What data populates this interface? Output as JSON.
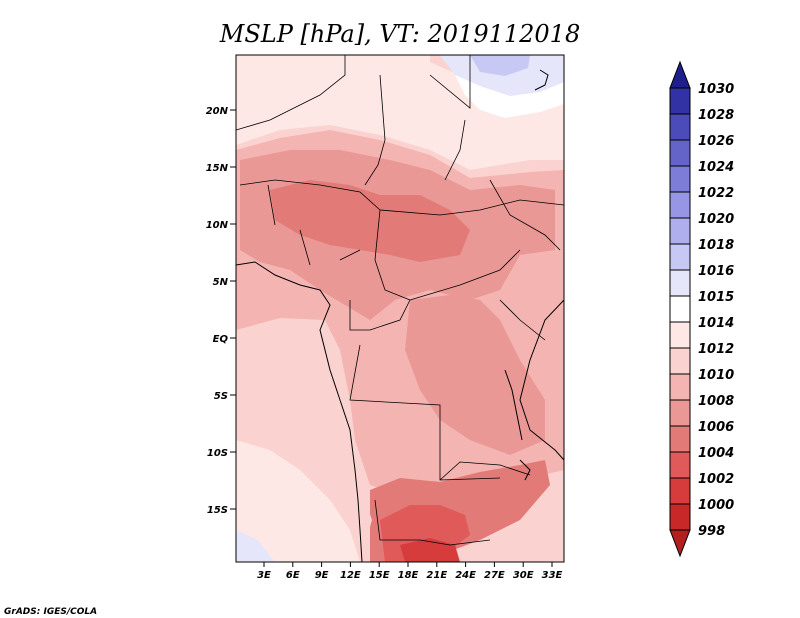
{
  "chart_data": {
    "type": "heatmap",
    "title": "MSLP [hPa], VT: 2019112018",
    "credit": "GrADS: IGES/COLA",
    "x_ticks": [
      "3E",
      "6E",
      "9E",
      "12E",
      "15E",
      "18E",
      "21E",
      "24E",
      "27E",
      "30E",
      "33E"
    ],
    "y_ticks": [
      "20N",
      "15N",
      "10N",
      "5N",
      "EQ",
      "5S",
      "10S",
      "15S"
    ],
    "colorbar": {
      "levels": [
        "998",
        "1000",
        "1002",
        "1004",
        "1006",
        "1008",
        "1010",
        "1012",
        "1014",
        "1015",
        "1016",
        "1018",
        "1020",
        "1022",
        "1024",
        "1026",
        "1028",
        "1030"
      ],
      "colors": [
        "#b31e1e",
        "#c82828",
        "#d73c3c",
        "#e05a5a",
        "#e27a78",
        "#ea9896",
        "#f3b4b2",
        "#fad2d0",
        "#fde8e6",
        "#ffffff",
        "#e6e6fb",
        "#c8c8f5",
        "#afafee",
        "#9696e4",
        "#7d7dd7",
        "#6464c8",
        "#4b4bb9",
        "#3232a5",
        "#1e1e8c"
      ]
    },
    "xlim": [
      "0E",
      "35E"
    ],
    "ylim": [
      "20S",
      "25N"
    ]
  }
}
